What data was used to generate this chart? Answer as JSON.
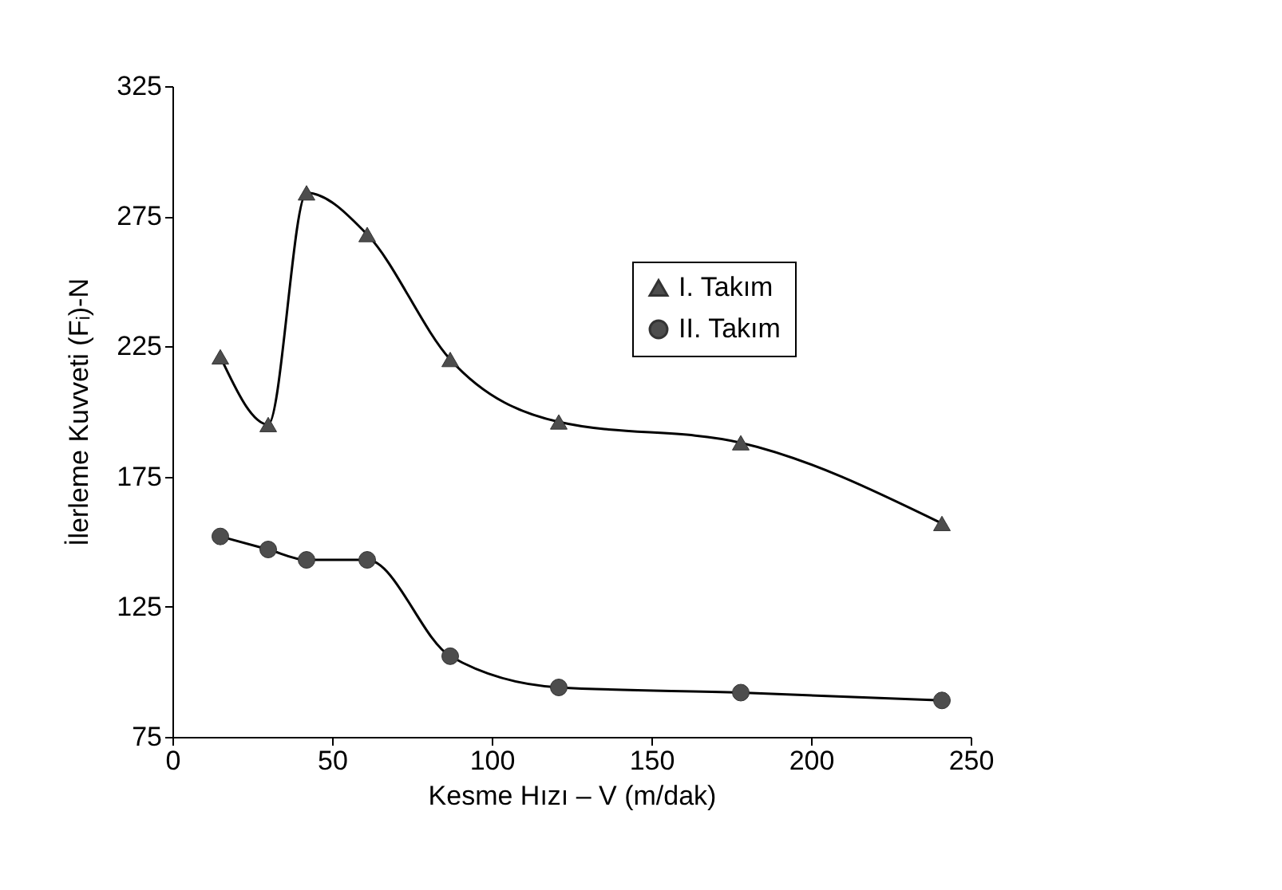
{
  "chart_data": {
    "type": "line",
    "xlabel": "Kesme Hızı – V (m/dak)",
    "ylabel": "İlerleme Kuvveti (Fᵢ)-N",
    "x": [
      15,
      30,
      42,
      61,
      87,
      121,
      178,
      241
    ],
    "series": [
      {
        "name": "I. Takım",
        "color": "#4d4d4d",
        "marker": "triangle",
        "values": [
          221,
          195,
          284,
          268,
          220,
          196,
          188,
          157
        ]
      },
      {
        "name": "II. Takım",
        "color": "#4d4d4d",
        "marker": "circle",
        "values": [
          152,
          147,
          143,
          143,
          106,
          94,
          92,
          89
        ]
      }
    ],
    "xlim": [
      0,
      250
    ],
    "xticks": [
      0,
      50,
      100,
      150,
      200,
      250
    ],
    "ylim": [
      75,
      325
    ],
    "yticks": [
      75,
      125,
      175,
      225,
      275,
      325
    ],
    "grid": false,
    "legend": "top right"
  }
}
